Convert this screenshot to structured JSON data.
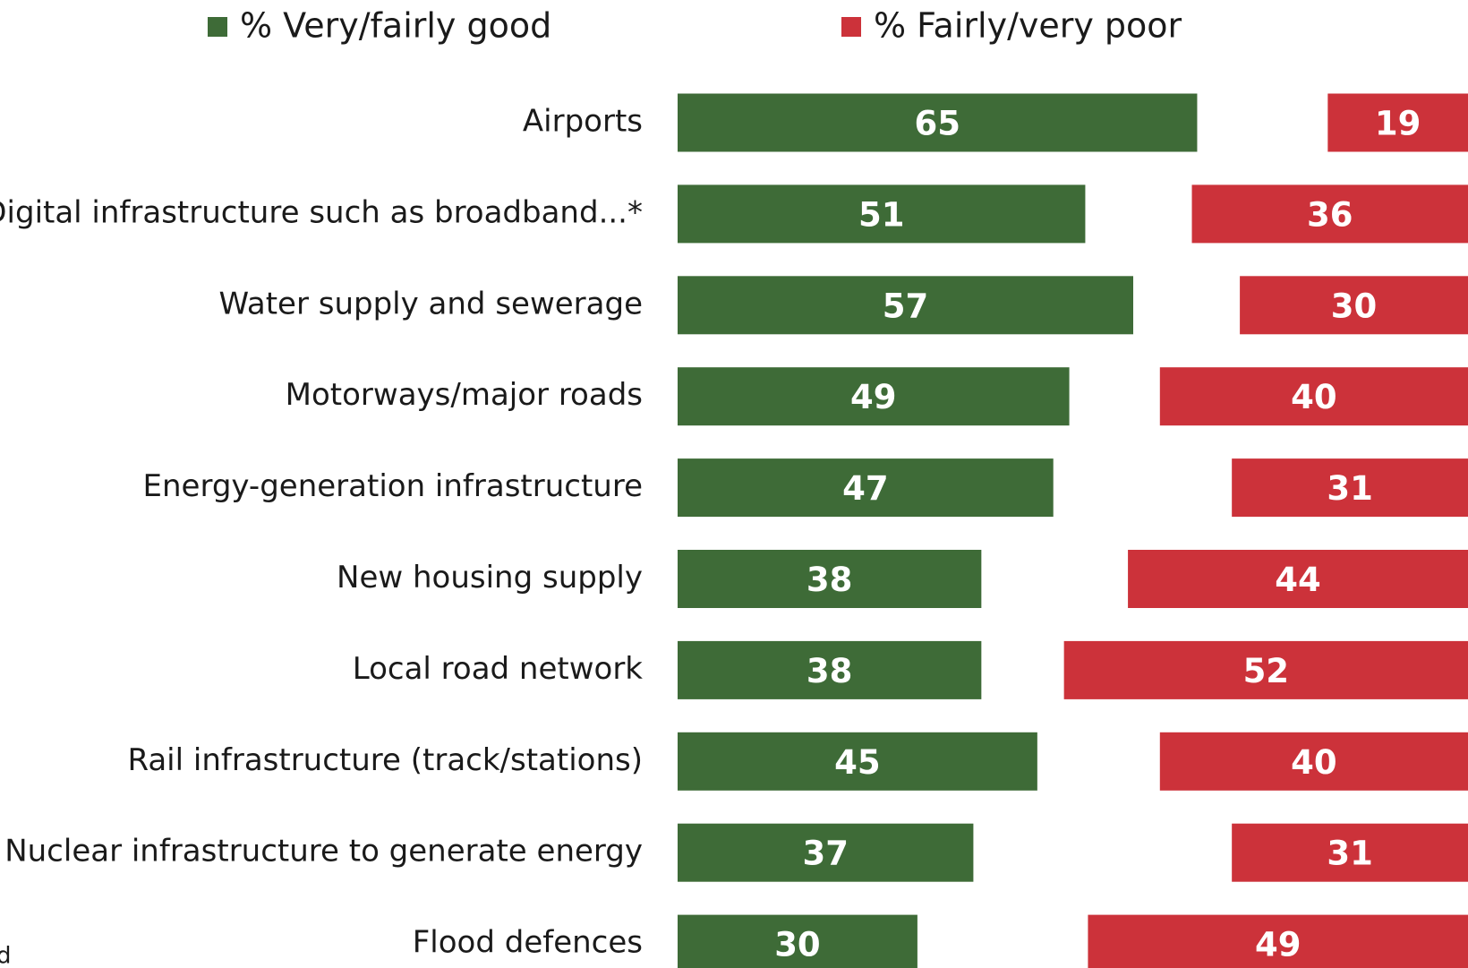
{
  "chart_data": {
    "type": "bar",
    "orientation": "horizontal",
    "categories": [
      "Airports",
      "Digital infrastructure such as broadband...*",
      "Water supply and sewerage",
      "Motorways/major roads",
      "Energy-generation infrastructure",
      "New housing supply",
      "Local road network",
      "Rail infrastructure (track/stations)",
      "Nuclear infrastructure to generate energy",
      "Flood defences"
    ],
    "series": [
      {
        "name": "% Very/fairly good",
        "color": "#3e6b37",
        "values": [
          65,
          51,
          57,
          49,
          47,
          38,
          38,
          45,
          37,
          30
        ]
      },
      {
        "name": "% Fairly/very poor",
        "color": "#cc323a",
        "values": [
          19,
          36,
          30,
          40,
          31,
          44,
          52,
          40,
          31,
          49
        ]
      }
    ],
    "legend": "top",
    "footnote": "d"
  }
}
